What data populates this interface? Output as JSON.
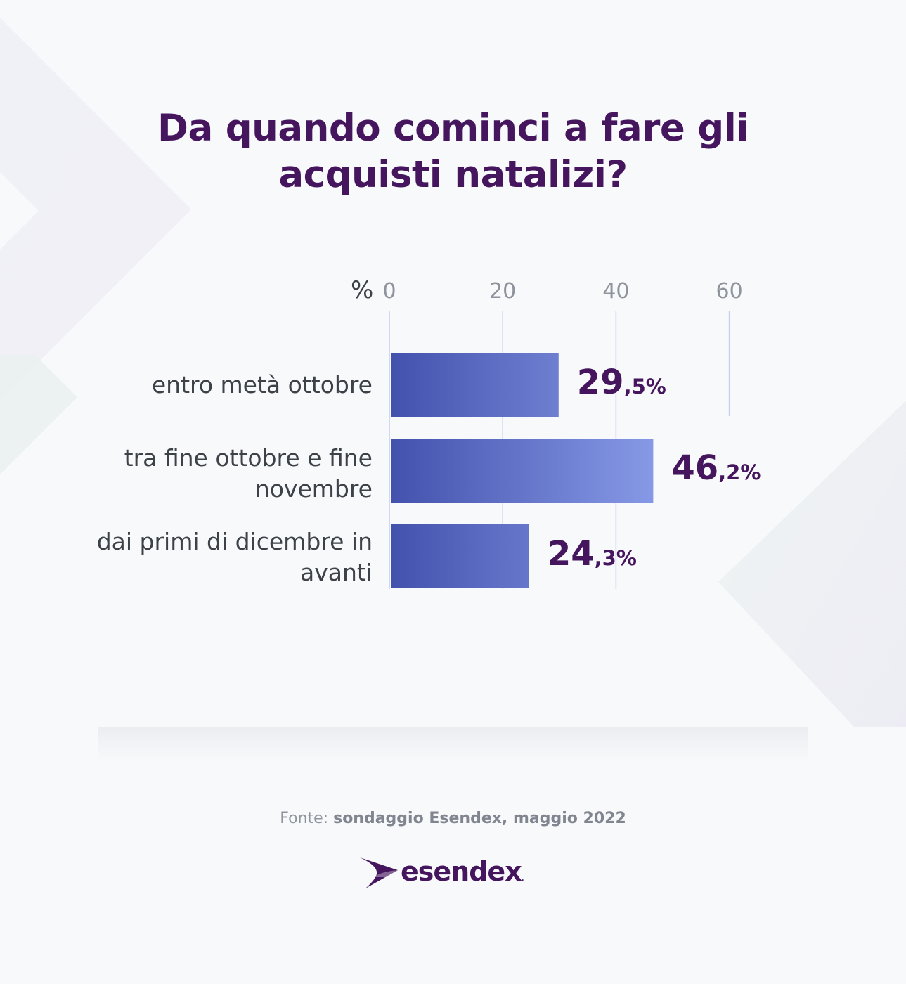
{
  "title_lines": [
    "Da quando cominci a fare gli",
    "acquisti natalizi?"
  ],
  "chart_data": {
    "type": "bar",
    "orientation": "horizontal",
    "title": "Da quando cominci a fare gli acquisti natalizi?",
    "unit_label": "%",
    "xlim": [
      0,
      60
    ],
    "x_ticks": [
      "0",
      "20",
      "40",
      "60"
    ],
    "grid": true,
    "categories": [
      "entro metà ottobre",
      "tra fine ottobre e fine novembre",
      "dai primi di dicembre in avanti"
    ],
    "category_lines": [
      [
        "entro metà ottobre"
      ],
      [
        "tra fine ottobre e fine",
        "novembre"
      ],
      [
        "dai primi di dicembre in",
        "avanti"
      ]
    ],
    "values": [
      29.5,
      46.2,
      24.3
    ],
    "value_labels": [
      {
        "int": "29",
        "dec": ",5%"
      },
      {
        "int": "46",
        "dec": ",2%"
      },
      {
        "int": "24",
        "dec": ",3%"
      }
    ]
  },
  "source": {
    "prefix": "Fonte:",
    "text": "sondaggio Esendex, maggio 2022"
  },
  "brand": {
    "name": "esendex",
    "mark": "."
  },
  "colors": {
    "title": "#45155e",
    "bar_start": "#4352ad",
    "bar_end": "#8b9eea",
    "grid": "#c8ccf0",
    "tick": "#8e939c",
    "text": "#3d4148"
  }
}
